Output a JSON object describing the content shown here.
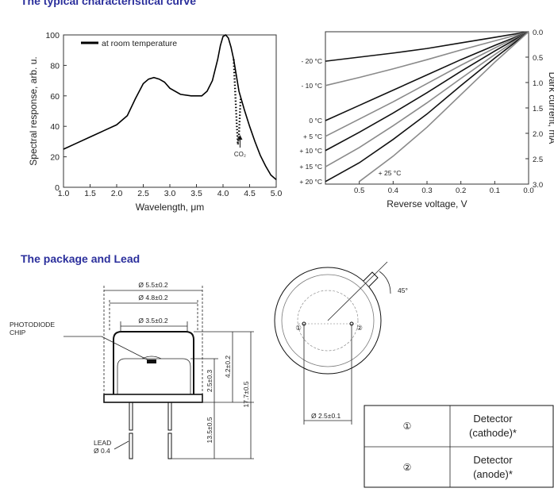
{
  "headings": {
    "curves": "The typical characteristical curve",
    "package": "The package and Lead"
  },
  "chart_data": [
    {
      "type": "line",
      "xlabel": "Wavelength, μm",
      "ylabel": "Spectral response, arb. u.",
      "xlim": [
        1.0,
        5.0
      ],
      "ylim": [
        0,
        100
      ],
      "xticks": [
        {
          "value": 1.0,
          "label": "1.0"
        },
        1.5,
        {
          "value": 2.0,
          "label": "2.0"
        },
        2.5,
        {
          "value": 3.0,
          "label": "3.0"
        },
        3.5,
        {
          "value": 4.0,
          "label": "4.0"
        },
        4.5,
        {
          "value": 5.0,
          "label": "5.0"
        }
      ],
      "yticks": [
        0,
        20,
        40,
        60,
        80,
        100
      ],
      "legend": "upper left",
      "annotation": "CO₂",
      "series": [
        {
          "name": "at room temperature",
          "color": "#000000",
          "linestyle": "solid",
          "x": [
            1.0,
            1.25,
            1.5,
            1.75,
            2.0,
            2.2,
            2.35,
            2.5,
            2.6,
            2.7,
            2.8,
            2.9,
            3.0,
            3.2,
            3.4,
            3.6,
            3.7,
            3.8,
            3.9,
            3.95,
            4.0,
            4.05,
            4.1,
            4.15,
            4.2,
            4.3,
            4.4,
            4.5,
            4.6,
            4.7,
            4.8,
            4.9,
            5.0
          ],
          "values": [
            25,
            29,
            33,
            37,
            41,
            47,
            58,
            68,
            71,
            72,
            71,
            69,
            65,
            61,
            60,
            60,
            63,
            70,
            84,
            93,
            99,
            100,
            98,
            92,
            84,
            63,
            51,
            40,
            30,
            21,
            14,
            8,
            5
          ]
        },
        {
          "color": "#000000",
          "linestyle": "dotted",
          "x": [
            4.2,
            4.23,
            4.26,
            4.28,
            4.3,
            4.33
          ],
          "values": [
            84,
            62,
            40,
            28,
            35,
            58
          ]
        }
      ]
    },
    {
      "type": "line",
      "xlabel": "Reverse voltage, V",
      "ylabel": "Dark current, mA",
      "xlim": [
        0.6,
        0.0
      ],
      "ylim": [
        3.0,
        0.0
      ],
      "xticks": [
        0.5,
        0.4,
        0.3,
        0.2,
        0.1,
        {
          "value": 0.0,
          "label": "0.0"
        }
      ],
      "yticks": [
        {
          "value": 0.0,
          "label": "0.0"
        },
        0.5,
        {
          "value": 1.0,
          "label": "1.0"
        },
        1.5,
        {
          "value": 2.0,
          "label": "2.0"
        },
        2.5,
        {
          "value": 3.0,
          "label": "3.0"
        }
      ],
      "x": [
        0.6,
        0.5,
        0.4,
        0.3,
        0.2,
        0.1,
        0.0
      ],
      "series": [
        {
          "name": "- 20 °C",
          "color": "#111111",
          "linestyle": "solid",
          "values": [
            0.58,
            0.5,
            0.42,
            0.33,
            0.22,
            0.11,
            0
          ]
        },
        {
          "name": "- 10 °C",
          "color": "#8a8a8a",
          "linestyle": "solid",
          "values": [
            1.06,
            0.9,
            0.73,
            0.55,
            0.36,
            0.18,
            0
          ]
        },
        {
          "name": "0 °C",
          "color": "#111111",
          "linestyle": "solid",
          "values": [
            1.75,
            1.45,
            1.15,
            0.85,
            0.55,
            0.27,
            0
          ]
        },
        {
          "name": "+ 5 °C",
          "color": "#8a8a8a",
          "linestyle": "solid",
          "values": [
            2.06,
            1.72,
            1.38,
            1.02,
            0.66,
            0.32,
            0
          ]
        },
        {
          "name": "+ 10 °C",
          "color": "#111111",
          "linestyle": "solid",
          "values": [
            2.34,
            1.98,
            1.6,
            1.2,
            0.78,
            0.38,
            0
          ]
        },
        {
          "name": "+ 15 °C",
          "color": "#8a8a8a",
          "linestyle": "solid",
          "values": [
            2.66,
            2.28,
            1.85,
            1.4,
            0.92,
            0.45,
            0
          ]
        },
        {
          "name": "+ 20 °C",
          "color": "#111111",
          "linestyle": "solid",
          "values": [
            2.95,
            2.58,
            2.12,
            1.62,
            1.06,
            0.52,
            0
          ]
        },
        {
          "name": "+ 25 °C",
          "color": "#8a8a8a",
          "linestyle": "solid",
          "values": [
            null,
            2.95,
            2.45,
            1.88,
            1.24,
            0.6,
            0
          ]
        }
      ]
    }
  ],
  "package": {
    "outer_diameter": "Ø 5.5±0.2",
    "cap_diameter": "Ø 4.8±0.2",
    "window_diameter": "Ø 3.5±0.2",
    "chip_label": [
      "PHOTODIODE",
      "CHIP"
    ],
    "height_cap": "2.5±0.3",
    "height_body": "4.2±0.2",
    "height_total": "17.7±0.5",
    "lead_length": "13.5±0.5",
    "lead_label": "LEAD",
    "lead_diameter": "Ø 0.4",
    "angle": "45°",
    "pin_circle": "Ø 2.5±0.1",
    "pins": [
      "①",
      "②"
    ]
  },
  "table": {
    "rows": [
      {
        "pin": "①",
        "lines": [
          "Detector",
          "(cathode)*"
        ]
      },
      {
        "pin": "②",
        "lines": [
          "Detector",
          "(anode)*"
        ]
      }
    ]
  }
}
